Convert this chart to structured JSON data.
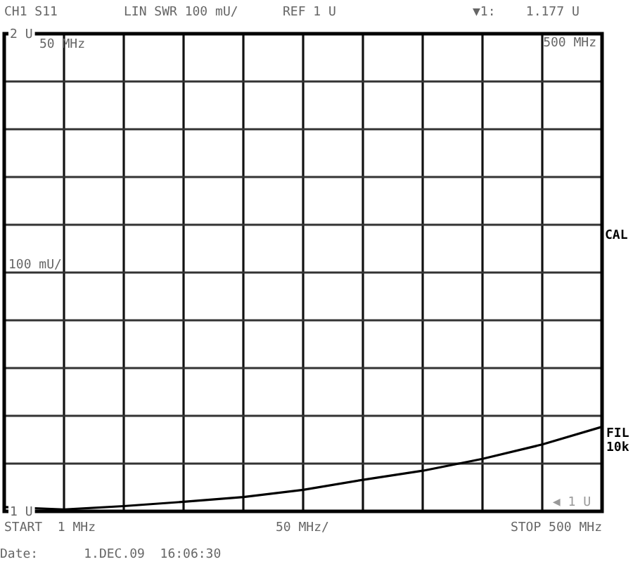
{
  "chart_data": {
    "type": "line",
    "categories": [
      null,
      null,
      null,
      null,
      null,
      null,
      null,
      null,
      null,
      null,
      null
    ],
    "series": [
      {
        "color": "#000000",
        "values": [
          1.009,
          1.004,
          1.011,
          1.02,
          1.03,
          1.045,
          1.066,
          1.085,
          1.11,
          1.14,
          1.177
        ]
      }
    ],
    "ylim": [
      1,
      2
    ],
    "yticks": [
      {
        "value": 1,
        "label": "1 U"
      },
      {
        "value": 1.1,
        "label": null
      },
      {
        "value": 1.2,
        "label": null
      },
      {
        "value": 1.3,
        "label": null
      },
      {
        "value": 1.4,
        "label": null
      },
      {
        "value": 1.5,
        "label": null
      },
      {
        "value": 1.6,
        "label": null
      },
      {
        "value": 1.7,
        "label": null
      },
      {
        "value": 1.8,
        "label": null
      },
      {
        "value": 1.9,
        "label": null
      },
      {
        "value": 2,
        "label": "2 U"
      }
    ],
    "tick_labels": "y",
    "grid": true,
    "marker": "none",
    "line_style": "solid",
    "annotations": [
      "CH1 S11",
      "LIN SWR 100 mU/",
      "REF 1 U",
      "▼1:    1.177 U",
      "500 MHz",
      "50 MHz",
      "100 mU/",
      "◀ 1 U",
      "CAL",
      "FIL",
      "10k",
      "START  1 MHz",
      "50 MHz/",
      "STOP 500 MHz",
      "Date:      1.DEC.09  16:06:30"
    ]
  }
}
